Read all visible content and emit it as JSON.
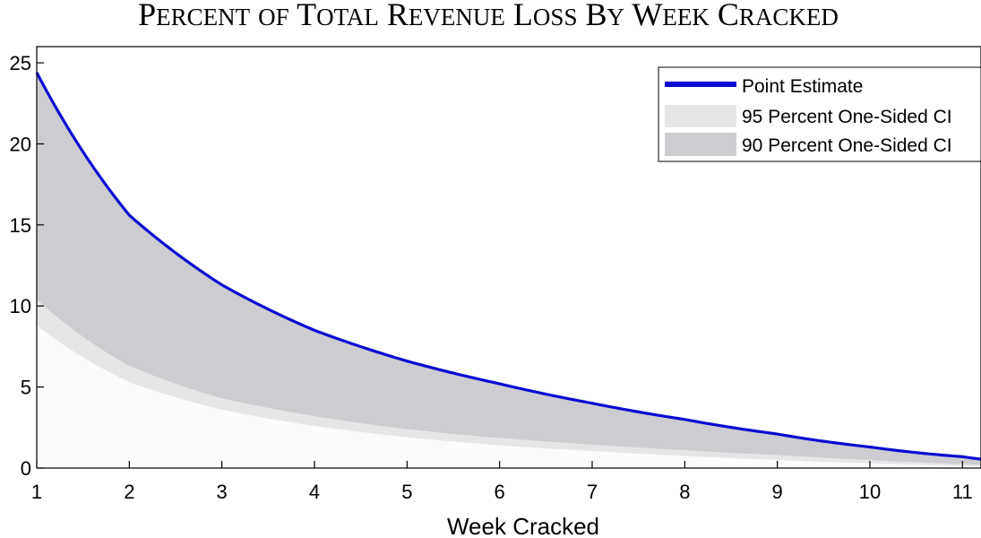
{
  "chart_data": {
    "type": "area",
    "title": "Percent of Total Revenue Loss By Week Cracked",
    "xlabel": "Week Cracked",
    "ylabel": "",
    "xlim": [
      1,
      11.2
    ],
    "ylim": [
      0,
      26
    ],
    "xticks": [
      1,
      2,
      3,
      4,
      5,
      6,
      7,
      8,
      9,
      10,
      11
    ],
    "yticks": [
      0,
      5,
      10,
      15,
      20,
      25
    ],
    "grid": false,
    "legend_position": "top-right",
    "x": [
      1,
      2,
      3,
      4,
      5,
      6,
      7,
      8,
      9,
      10,
      11,
      11.2
    ],
    "series": [
      {
        "name": "Point Estimate",
        "kind": "line",
        "color": "#0a0ad2",
        "values": [
          24.4,
          15.6,
          11.3,
          8.5,
          6.6,
          5.2,
          4.0,
          3.0,
          2.1,
          1.3,
          0.7,
          0.55
        ]
      },
      {
        "name": "95 Percent One-Sided CI",
        "kind": "band",
        "color": "#e6e6e6",
        "values": [
          8.8,
          5.3,
          3.6,
          2.6,
          1.9,
          1.4,
          1.05,
          0.75,
          0.5,
          0.3,
          0.15,
          0.1
        ]
      },
      {
        "name": "90 Percent One-Sided CI",
        "kind": "band",
        "color": "#cdcdd1",
        "values": [
          10.4,
          6.3,
          4.3,
          3.2,
          2.4,
          1.85,
          1.45,
          1.1,
          0.8,
          0.5,
          0.25,
          0.2
        ]
      }
    ]
  }
}
